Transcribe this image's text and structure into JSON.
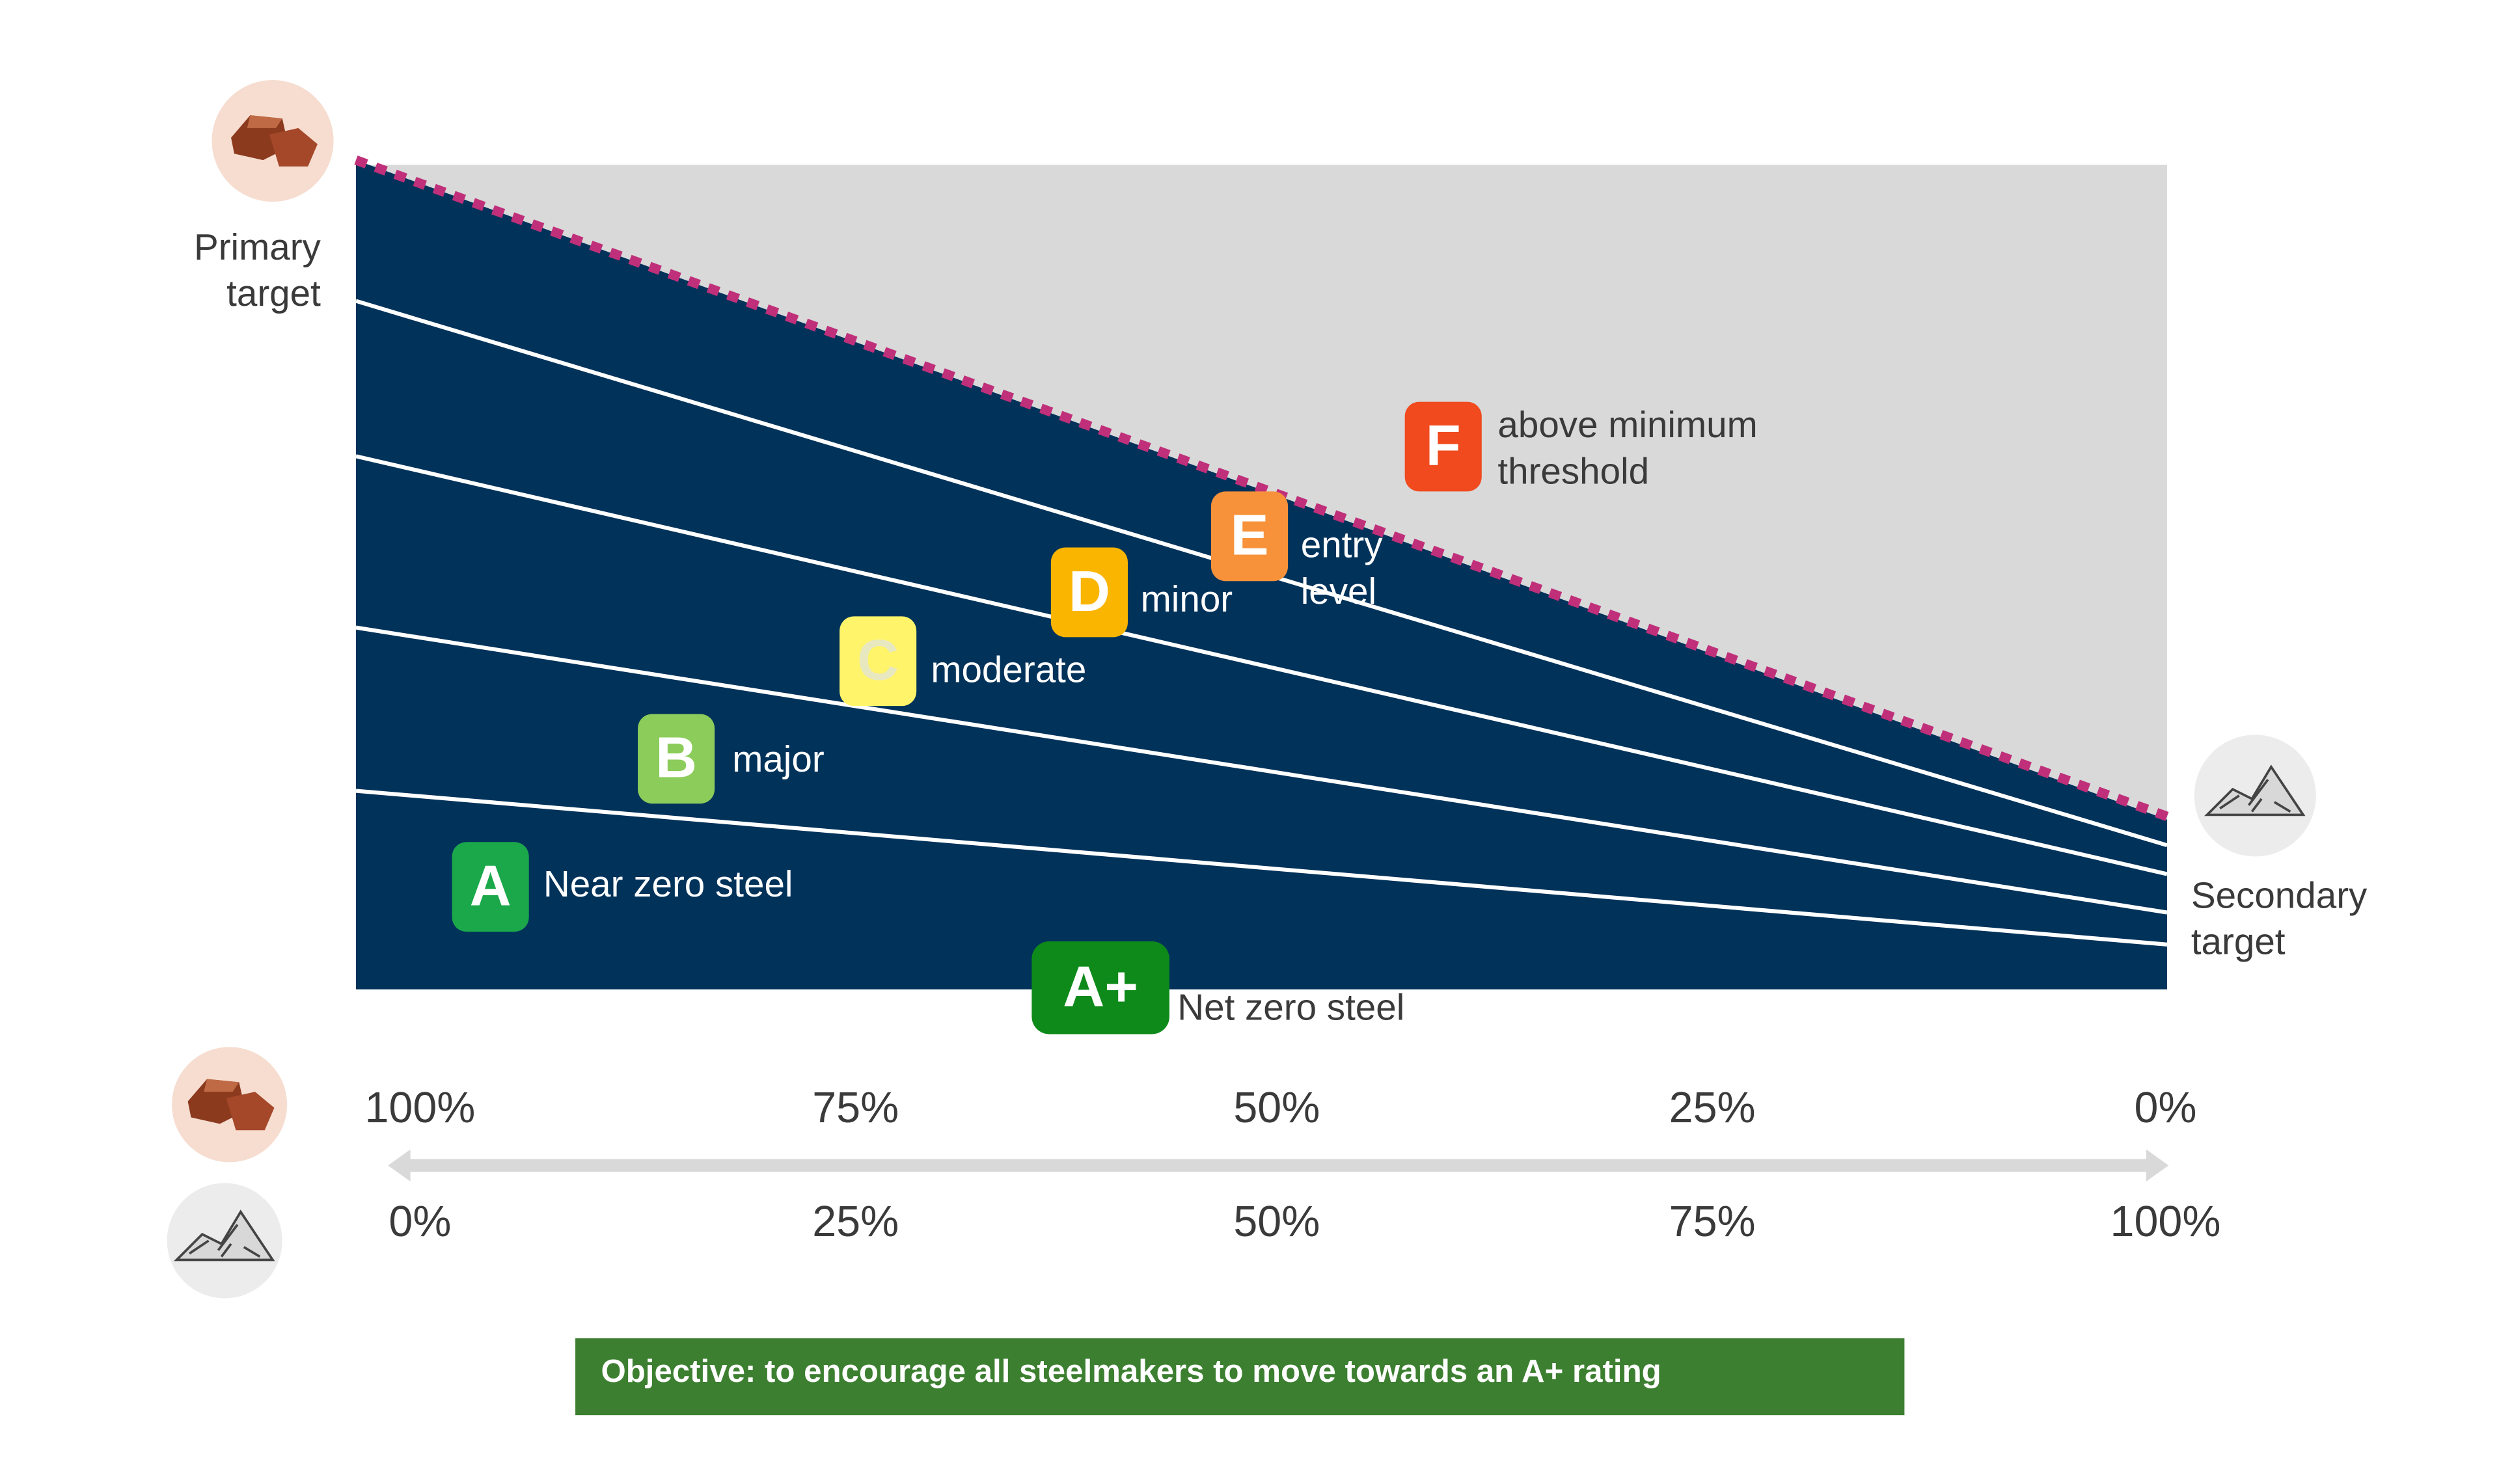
{
  "primary_target": [
    "Primary",
    "target"
  ],
  "secondary_target": [
    "Secondary",
    "target"
  ],
  "ratings": [
    {
      "grade": "A+",
      "label": [
        "Net zero steel"
      ]
    },
    {
      "grade": "A",
      "label": [
        "Near zero steel"
      ]
    },
    {
      "grade": "B",
      "label": [
        "major"
      ]
    },
    {
      "grade": "C",
      "label": [
        "moderate"
      ]
    },
    {
      "grade": "D",
      "label": [
        "minor"
      ]
    },
    {
      "grade": "E",
      "label": [
        "entry",
        "level"
      ]
    },
    {
      "grade": "F",
      "label": [
        "above minimum",
        "threshold"
      ]
    }
  ],
  "axis": {
    "primary_share": [
      "100%",
      "75%",
      "50%",
      "25%",
      "0%"
    ],
    "secondary_share": [
      "0%",
      "25%",
      "50%",
      "75%",
      "100%"
    ]
  },
  "objective": "Objective: to encourage all steelmakers to move towards an A+ rating"
}
